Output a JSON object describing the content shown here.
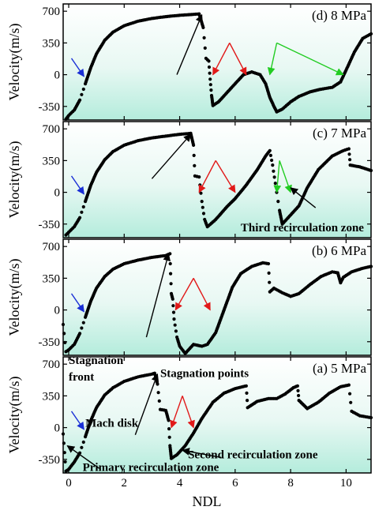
{
  "xlabel": "NDL",
  "arrow_colors": {
    "black": "#000000",
    "red": "#e11919",
    "green": "#22cc22",
    "blue": "#1a2fd6"
  },
  "chart_data": [
    {
      "type": "scatter",
      "title": "(d) 8 MPa",
      "ylabel": "Velocity(m/s)",
      "ylim": [
        -500,
        780
      ],
      "xlim": [
        -0.2,
        10.9
      ],
      "yticks": [
        "700",
        "350",
        "0",
        "-350"
      ],
      "ytick_values": [
        700,
        350,
        0,
        -350
      ],
      "points": [
        [
          -0.1,
          -490
        ],
        [
          0.0,
          -450
        ],
        [
          0.2,
          -390
        ],
        [
          0.4,
          -280
        ],
        [
          0.6,
          -100
        ],
        [
          0.8,
          80
        ],
        [
          1.0,
          230
        ],
        [
          1.3,
          380
        ],
        [
          1.6,
          470
        ],
        [
          2.0,
          540
        ],
        [
          2.5,
          590
        ],
        [
          3.0,
          620
        ],
        [
          3.5,
          640
        ],
        [
          4.0,
          655
        ],
        [
          4.5,
          665
        ],
        [
          4.7,
          670
        ],
        [
          4.85,
          520
        ],
        [
          4.95,
          180
        ],
        [
          5.05,
          150
        ],
        [
          5.1,
          -50
        ],
        [
          5.15,
          -230
        ],
        [
          5.2,
          -340
        ],
        [
          5.4,
          -300
        ],
        [
          5.7,
          -200
        ],
        [
          6.0,
          -100
        ],
        [
          6.3,
          0
        ],
        [
          6.6,
          30
        ],
        [
          6.9,
          0
        ],
        [
          7.1,
          -100
        ],
        [
          7.25,
          -250
        ],
        [
          7.4,
          -350
        ],
        [
          7.5,
          -410
        ],
        [
          7.7,
          -380
        ],
        [
          8.0,
          -300
        ],
        [
          8.3,
          -240
        ],
        [
          8.7,
          -190
        ],
        [
          9.1,
          -160
        ],
        [
          9.5,
          -140
        ],
        [
          9.8,
          -80
        ],
        [
          10.0,
          50
        ],
        [
          10.3,
          250
        ],
        [
          10.6,
          400
        ],
        [
          10.9,
          450
        ]
      ],
      "arrows": [
        {
          "color": "black",
          "from": [
            3.9,
            0
          ],
          "to": [
            4.8,
            660
          ]
        },
        {
          "color": "red",
          "from": [
            5.8,
            350
          ],
          "to": [
            5.2,
            0
          ]
        },
        {
          "color": "red",
          "from": [
            5.8,
            350
          ],
          "to": [
            6.4,
            0
          ]
        },
        {
          "color": "green",
          "from": [
            7.5,
            350
          ],
          "to": [
            7.25,
            0
          ]
        },
        {
          "color": "green",
          "from": [
            7.5,
            350
          ],
          "to": [
            9.9,
            0
          ]
        },
        {
          "color": "blue",
          "from": [
            0.1,
            180
          ],
          "to": [
            0.55,
            -20
          ]
        }
      ],
      "annotations": []
    },
    {
      "type": "scatter",
      "title": "(c) 7 MPa",
      "ylabel": "Velocity(m/s)",
      "ylim": [
        -500,
        780
      ],
      "xlim": [
        -0.2,
        10.9
      ],
      "yticks": [
        "700",
        "350",
        "0",
        "-350"
      ],
      "ytick_values": [
        700,
        350,
        0,
        -350
      ],
      "points": [
        [
          -0.1,
          -470
        ],
        [
          0.0,
          -440
        ],
        [
          0.2,
          -380
        ],
        [
          0.4,
          -280
        ],
        [
          0.6,
          -100
        ],
        [
          0.8,
          80
        ],
        [
          1.0,
          220
        ],
        [
          1.3,
          360
        ],
        [
          1.6,
          450
        ],
        [
          2.0,
          520
        ],
        [
          2.5,
          570
        ],
        [
          3.0,
          600
        ],
        [
          3.5,
          620
        ],
        [
          4.0,
          640
        ],
        [
          4.4,
          650
        ],
        [
          4.5,
          520
        ],
        [
          4.55,
          180
        ],
        [
          4.7,
          170
        ],
        [
          4.8,
          -100
        ],
        [
          4.9,
          -300
        ],
        [
          5.0,
          -380
        ],
        [
          5.3,
          -300
        ],
        [
          5.7,
          -160
        ],
        [
          6.0,
          -70
        ],
        [
          6.4,
          80
        ],
        [
          6.8,
          250
        ],
        [
          7.1,
          400
        ],
        [
          7.25,
          460
        ],
        [
          7.35,
          300
        ],
        [
          7.45,
          100
        ],
        [
          7.6,
          -200
        ],
        [
          7.7,
          -350
        ],
        [
          8.0,
          -250
        ],
        [
          8.3,
          -150
        ],
        [
          8.6,
          50
        ],
        [
          9.0,
          250
        ],
        [
          9.5,
          400
        ],
        [
          9.9,
          460
        ],
        [
          10.1,
          480
        ],
        [
          10.15,
          300
        ],
        [
          10.5,
          280
        ],
        [
          10.9,
          240
        ]
      ],
      "arrows": [
        {
          "color": "black",
          "from": [
            3.0,
            150
          ],
          "to": [
            4.4,
            640
          ]
        },
        {
          "color": "red",
          "from": [
            5.3,
            350
          ],
          "to": [
            4.7,
            0
          ]
        },
        {
          "color": "red",
          "from": [
            5.3,
            350
          ],
          "to": [
            6.0,
            0
          ]
        },
        {
          "color": "green",
          "from": [
            7.6,
            350
          ],
          "to": [
            7.5,
            0
          ]
        },
        {
          "color": "green",
          "from": [
            7.6,
            350
          ],
          "to": [
            8.0,
            0
          ]
        },
        {
          "color": "black",
          "from": [
            8.9,
            -170
          ],
          "to": [
            8.0,
            50
          ]
        },
        {
          "color": "blue",
          "from": [
            0.1,
            180
          ],
          "to": [
            0.55,
            -20
          ]
        }
      ],
      "annotations": [
        {
          "text": "Third recirculation zone",
          "x": 6.2,
          "y": -430
        }
      ]
    },
    {
      "type": "scatter",
      "title": "(b) 6 MPa",
      "ylabel": "Velocity(m/s)",
      "ylim": [
        -500,
        780
      ],
      "xlim": [
        -0.2,
        10.9
      ],
      "yticks": [
        "700",
        "350",
        "0",
        "-350"
      ],
      "ytick_values": [
        700,
        350,
        0,
        -350
      ],
      "points": [
        [
          -0.2,
          -160
        ],
        [
          -0.1,
          -460
        ],
        [
          0.0,
          -440
        ],
        [
          0.2,
          -380
        ],
        [
          0.4,
          -260
        ],
        [
          0.6,
          -80
        ],
        [
          0.8,
          100
        ],
        [
          1.0,
          240
        ],
        [
          1.3,
          370
        ],
        [
          1.6,
          450
        ],
        [
          2.0,
          510
        ],
        [
          2.5,
          550
        ],
        [
          3.0,
          580
        ],
        [
          3.5,
          600
        ],
        [
          3.65,
          620
        ],
        [
          3.7,
          180
        ],
        [
          3.75,
          120
        ],
        [
          3.8,
          -100
        ],
        [
          3.9,
          -300
        ],
        [
          4.0,
          -400
        ],
        [
          4.2,
          -480
        ],
        [
          4.5,
          -380
        ],
        [
          4.8,
          -400
        ],
        [
          5.0,
          -380
        ],
        [
          5.3,
          -250
        ],
        [
          5.6,
          0
        ],
        [
          5.9,
          250
        ],
        [
          6.2,
          400
        ],
        [
          6.6,
          480
        ],
        [
          7.0,
          520
        ],
        [
          7.2,
          510
        ],
        [
          7.25,
          200
        ],
        [
          7.4,
          240
        ],
        [
          7.7,
          190
        ],
        [
          8.0,
          150
        ],
        [
          8.3,
          180
        ],
        [
          8.7,
          280
        ],
        [
          9.1,
          370
        ],
        [
          9.5,
          420
        ],
        [
          9.7,
          410
        ],
        [
          9.8,
          300
        ],
        [
          9.9,
          360
        ],
        [
          10.2,
          420
        ],
        [
          10.6,
          460
        ],
        [
          10.9,
          480
        ]
      ],
      "arrows": [
        {
          "color": "black",
          "from": [
            2.8,
            -300
          ],
          "to": [
            3.6,
            620
          ]
        },
        {
          "color": "red",
          "from": [
            4.5,
            350
          ],
          "to": [
            3.85,
            0
          ]
        },
        {
          "color": "red",
          "from": [
            4.5,
            350
          ],
          "to": [
            5.1,
            0
          ]
        },
        {
          "color": "blue",
          "from": [
            0.1,
            180
          ],
          "to": [
            0.55,
            -20
          ]
        }
      ],
      "annotations": []
    },
    {
      "type": "scatter",
      "title": "(a) 5 MPa",
      "ylabel": "Velocity(m/s)",
      "ylim": [
        -500,
        780
      ],
      "xlim": [
        -0.2,
        10.9
      ],
      "yticks": [
        "700",
        "350",
        "0",
        "-350"
      ],
      "ytick_values": [
        700,
        350,
        0,
        -350
      ],
      "points": [
        [
          -0.2,
          -70
        ],
        [
          -0.1,
          -480
        ],
        [
          0.0,
          -460
        ],
        [
          0.2,
          -380
        ],
        [
          0.4,
          -280
        ],
        [
          0.6,
          -100
        ],
        [
          0.8,
          80
        ],
        [
          1.0,
          220
        ],
        [
          1.3,
          360
        ],
        [
          1.6,
          440
        ],
        [
          2.0,
          510
        ],
        [
          2.5,
          560
        ],
        [
          3.0,
          590
        ],
        [
          3.1,
          600
        ],
        [
          3.2,
          480
        ],
        [
          3.3,
          200
        ],
        [
          3.5,
          190
        ],
        [
          3.6,
          80
        ],
        [
          3.65,
          -200
        ],
        [
          3.7,
          -340
        ],
        [
          3.9,
          -300
        ],
        [
          4.2,
          -200
        ],
        [
          4.5,
          -60
        ],
        [
          4.8,
          100
        ],
        [
          5.2,
          280
        ],
        [
          5.6,
          380
        ],
        [
          6.0,
          430
        ],
        [
          6.4,
          460
        ],
        [
          6.45,
          220
        ],
        [
          6.8,
          290
        ],
        [
          7.2,
          320
        ],
        [
          7.5,
          320
        ],
        [
          7.8,
          370
        ],
        [
          8.1,
          440
        ],
        [
          8.25,
          460
        ],
        [
          8.3,
          300
        ],
        [
          8.6,
          210
        ],
        [
          9.0,
          280
        ],
        [
          9.4,
          380
        ],
        [
          9.8,
          450
        ],
        [
          10.1,
          470
        ],
        [
          10.2,
          180
        ],
        [
          10.5,
          130
        ],
        [
          10.9,
          110
        ]
      ],
      "arrows": [
        {
          "color": "black",
          "from": [
            2.4,
            -80
          ],
          "to": [
            3.2,
            590
          ]
        },
        {
          "color": "red",
          "from": [
            4.1,
            350
          ],
          "to": [
            3.7,
            0
          ]
        },
        {
          "color": "red",
          "from": [
            4.1,
            350
          ],
          "to": [
            4.5,
            0
          ]
        },
        {
          "color": "black",
          "from": [
            5.5,
            -330
          ],
          "to": [
            4.1,
            -250
          ]
        },
        {
          "color": "black",
          "from": [
            1.1,
            -450
          ],
          "to": [
            -0.05,
            -200
          ]
        },
        {
          "color": "blue",
          "from": [
            0.1,
            180
          ],
          "to": [
            0.55,
            -20
          ]
        }
      ],
      "annotations": [
        {
          "text": "Stagnation",
          "x": 0.0,
          "y": 700
        },
        {
          "text": "front",
          "x": 0.0,
          "y": 520
        },
        {
          "text": "Stagnation points",
          "x": 3.3,
          "y": 560
        },
        {
          "text": "Mach disk",
          "x": 0.6,
          "y": 10
        },
        {
          "text": "Second recirculation zone",
          "x": 4.3,
          "y": -340
        },
        {
          "text": "Primary recirculation zone",
          "x": 0.5,
          "y": -480
        }
      ]
    }
  ],
  "xaxis": {
    "ticks": [
      "0",
      "2",
      "4",
      "6",
      "8",
      "10"
    ],
    "values": [
      0,
      2,
      4,
      6,
      8,
      10
    ]
  }
}
